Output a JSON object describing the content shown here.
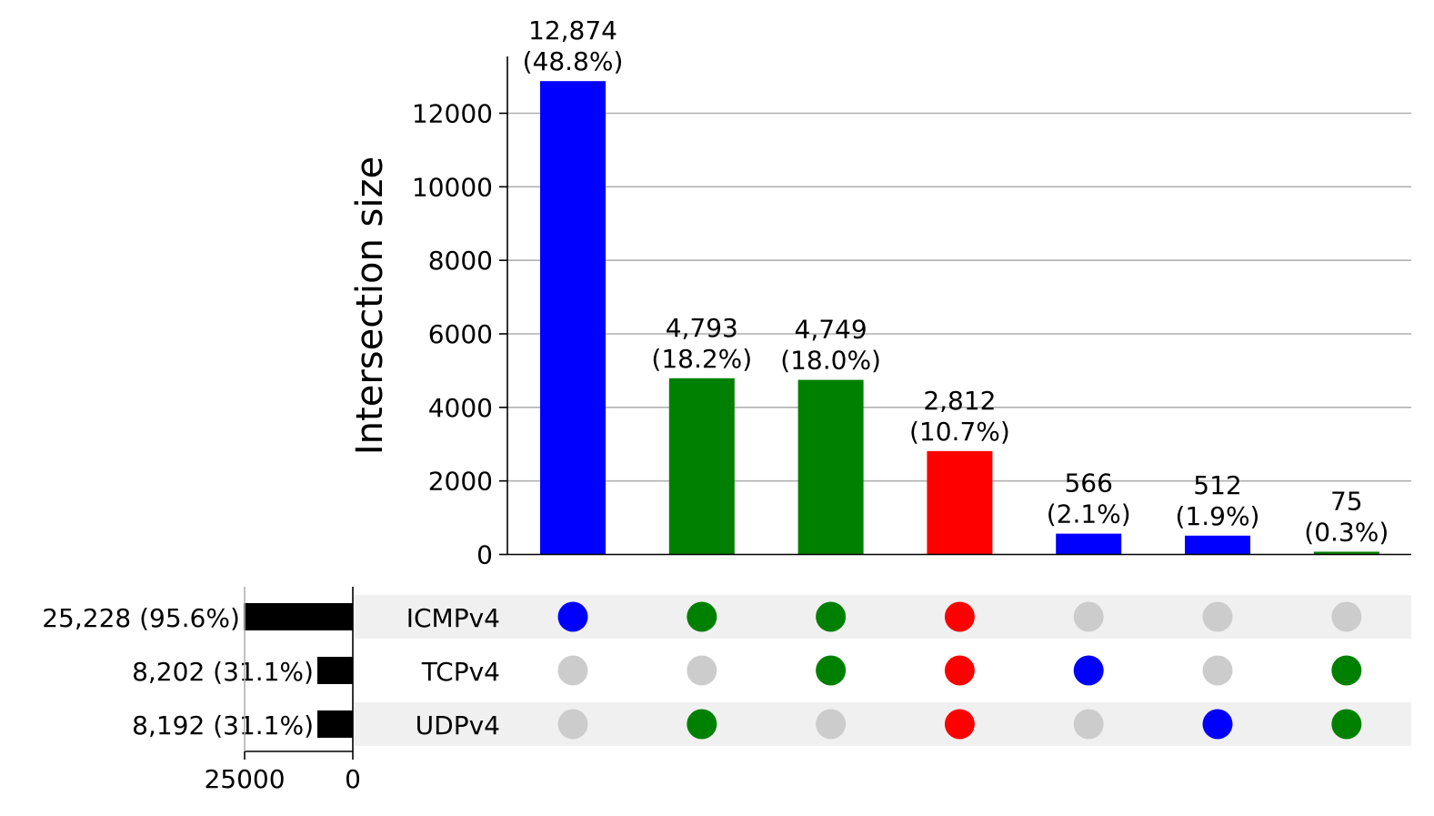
{
  "chart_data": {
    "type": "bar",
    "ylabel": "Intersection size",
    "ylim": [
      0,
      13500
    ],
    "yticks": [
      0,
      2000,
      4000,
      6000,
      8000,
      10000,
      12000
    ],
    "grid": true,
    "sets": [
      "ICMPv4",
      "TCPv4",
      "UDPv4"
    ],
    "set_sizes": {
      "values": [
        25228,
        8202,
        8192
      ],
      "labels": [
        "25,228 (95.6%)",
        "8,202 (31.1%)",
        "8,192 (31.1%)"
      ],
      "axis_ticks": [
        "25000",
        "0"
      ],
      "xlim": [
        0,
        26000
      ]
    },
    "intersections": [
      {
        "value": 12874,
        "count_label": "12,874",
        "pct_label": "(48.8%)",
        "members": [
          "ICMPv4"
        ],
        "color": "#0000ff"
      },
      {
        "value": 4793,
        "count_label": "4,793",
        "pct_label": "(18.2%)",
        "members": [
          "ICMPv4",
          "UDPv4"
        ],
        "color": "#008000"
      },
      {
        "value": 4749,
        "count_label": "4,749",
        "pct_label": "(18.0%)",
        "members": [
          "ICMPv4",
          "TCPv4"
        ],
        "color": "#008000"
      },
      {
        "value": 2812,
        "count_label": "2,812",
        "pct_label": "(10.7%)",
        "members": [
          "ICMPv4",
          "TCPv4",
          "UDPv4"
        ],
        "color": "#ff0000"
      },
      {
        "value": 566,
        "count_label": "566",
        "pct_label": "(2.1%)",
        "members": [
          "TCPv4"
        ],
        "color": "#0000ff"
      },
      {
        "value": 512,
        "count_label": "512",
        "pct_label": "(1.9%)",
        "members": [
          "UDPv4"
        ],
        "color": "#0000ff"
      },
      {
        "value": 75,
        "count_label": "75",
        "pct_label": "(0.3%)",
        "members": [
          "TCPv4",
          "UDPv4"
        ],
        "color": "#008000"
      }
    ],
    "colors": {
      "inactive_dot": "#cccccc",
      "grid": "#b0b0b0",
      "stripe": "#f0f0f0",
      "set_bar": "#000000"
    }
  }
}
